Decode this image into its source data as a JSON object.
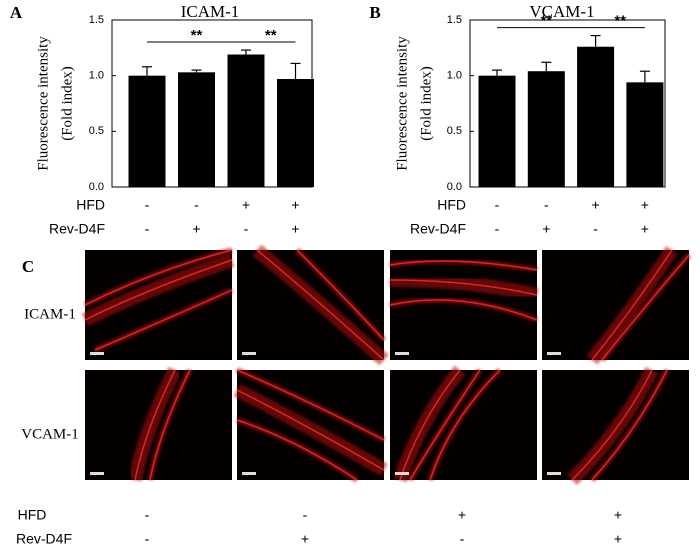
{
  "chart_data": [
    {
      "type": "bar",
      "panel": "A",
      "title": "ICAM-1",
      "ylabel": [
        "Fluorescence intensity",
        "(Fold index)"
      ],
      "categories": [
        null,
        null,
        null,
        null
      ],
      "values": [
        1.0,
        1.03,
        1.19,
        0.97
      ],
      "errors": [
        0.08,
        0.02,
        0.04,
        0.14
      ],
      "color": "#000000",
      "ylim": [
        0,
        1.5
      ],
      "yticks": [
        {
          "value": 0,
          "label": "0.0"
        },
        0.5,
        {
          "value": 1,
          "label": "1.0"
        },
        1.5
      ],
      "treatments": [
        {
          "name": "HFD",
          "signs": [
            "-",
            "-",
            "+",
            "+"
          ]
        },
        {
          "name": "Rev-D4F",
          "signs": [
            "-",
            "+",
            "-",
            "+"
          ]
        }
      ],
      "annotations": [
        {
          "text": "**",
          "from": 0,
          "to": 2
        },
        {
          "text": "**",
          "from": 2,
          "to": 3
        }
      ]
    },
    {
      "type": "bar",
      "panel": "B",
      "title": "VCAM-1",
      "ylabel": [
        "Fluorescence intensity",
        "(Fold index)"
      ],
      "categories": [
        null,
        null,
        null,
        null
      ],
      "values": [
        1.0,
        1.04,
        1.26,
        0.94
      ],
      "errors": [
        0.05,
        0.08,
        0.1,
        0.1
      ],
      "color": "#000000",
      "ylim": [
        0,
        1.5
      ],
      "yticks": [
        {
          "value": 0,
          "label": "0.0"
        },
        0.5,
        {
          "value": 1,
          "label": "1.0"
        },
        1.5
      ],
      "treatments": [
        {
          "name": "HFD",
          "signs": [
            "-",
            "-",
            "+",
            "+"
          ]
        },
        {
          "name": "Rev-D4F",
          "signs": [
            "-",
            "+",
            "-",
            "+"
          ]
        }
      ],
      "annotations": [
        {
          "text": "**",
          "from": 0,
          "to": 2
        },
        {
          "text": "**",
          "from": 2,
          "to": 3
        }
      ]
    }
  ],
  "panel_c": {
    "label": "C",
    "rows": [
      "ICAM-1",
      "VCAM-1"
    ],
    "treatments": [
      {
        "name": "HFD",
        "signs": [
          "-",
          "-",
          "+",
          "+"
        ]
      },
      {
        "name": "Rev-D4F",
        "signs": [
          "-",
          "+",
          "-",
          "+"
        ]
      }
    ]
  }
}
